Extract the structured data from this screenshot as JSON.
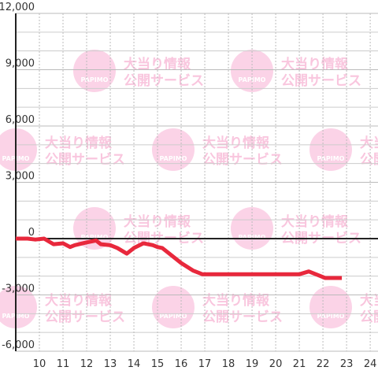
{
  "chart_data": {
    "type": "line",
    "watermark": [
      "大当り情報",
      "公開サービス",
      "PAPIMO"
    ],
    "series": [
      {
        "color": "#e8283c",
        "x": [
          9.0,
          9.5,
          9.83,
          10.2,
          10.6,
          11.0,
          11.3,
          11.5,
          12.0,
          12.4,
          12.6,
          13.0,
          13.3,
          13.7,
          14.0,
          14.4,
          14.8,
          15.0,
          15.2,
          15.5,
          16.0,
          16.5,
          16.9,
          17.5,
          21.0,
          21.4,
          21.8,
          22.1,
          22.8
        ],
        "values": [
          0,
          0,
          -50,
          0,
          -300,
          -250,
          -450,
          -350,
          -200,
          -100,
          -300,
          -350,
          -500,
          -800,
          -500,
          -250,
          -350,
          -450,
          -500,
          -800,
          -1300,
          -1700,
          -1900,
          -1900,
          -1900,
          -1750,
          -1950,
          -2100,
          -2100
        ]
      }
    ],
    "xlim": [
      9,
      24.33
    ],
    "xticks": [
      10,
      11,
      12,
      13,
      14,
      15,
      16,
      17,
      18,
      19,
      20,
      21,
      22,
      23,
      24
    ],
    "ylim": [
      -6000,
      12000
    ],
    "yticks": [
      {
        "value": -6000,
        "label": "-6,000"
      },
      {
        "value": -3000,
        "label": "-3,000"
      },
      0,
      {
        "value": 3000,
        "label": "3,000"
      },
      {
        "value": 6000,
        "label": "6,000"
      },
      {
        "value": 9000,
        "label": "9,000"
      },
      {
        "value": 12000,
        "label": "12,000"
      }
    ],
    "y_minor_grid": [
      -5000,
      -4000,
      -2000,
      -1000,
      1000,
      2000,
      4000,
      5000,
      7000,
      8000,
      10000,
      11000
    ],
    "grid": true
  }
}
